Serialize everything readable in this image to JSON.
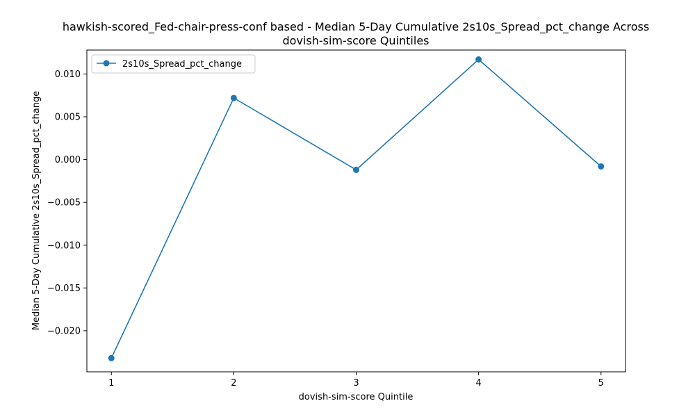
{
  "chart_data": {
    "type": "line",
    "title_line1": "hawkish-scored_Fed-chair-press-conf based - Median 5-Day Cumulative 2s10s_Spread_pct_change Across",
    "title_line2": "dovish-sim-score Quintiles",
    "xlabel": "dovish-sim-score Quintile",
    "ylabel": "Median 5-Day Cumulative 2s10s_Spread_pct_change",
    "x": [
      1,
      2,
      3,
      4,
      5
    ],
    "x_tick_labels": [
      "1",
      "2",
      "3",
      "4",
      "5"
    ],
    "xlim": [
      0.8,
      5.2
    ],
    "ylim": [
      -0.0248,
      0.0128
    ],
    "y_ticks": [
      0.01,
      0.005,
      0.0,
      -0.005,
      -0.01,
      -0.015,
      -0.02
    ],
    "y_tick_labels": [
      "0.010",
      "0.005",
      "0.000",
      "−0.005",
      "−0.010",
      "−0.015",
      "−0.020"
    ],
    "series": [
      {
        "name": "2s10s_Spread_pct_change",
        "values": [
          -0.0232,
          0.0072,
          -0.0012,
          0.0117,
          -0.0008
        ],
        "color": "#1f77b4"
      }
    ],
    "legend_position": "upper-left",
    "grid": false
  }
}
